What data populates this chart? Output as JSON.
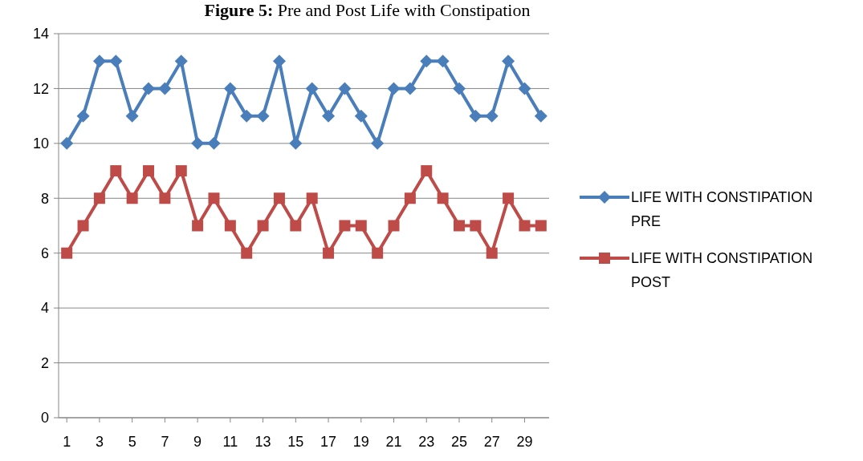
{
  "chart_data": {
    "type": "line",
    "title": "Figure 5: Pre and Post Life with Constipation",
    "x": [
      1,
      2,
      3,
      4,
      5,
      6,
      7,
      8,
      9,
      10,
      11,
      12,
      13,
      14,
      15,
      16,
      17,
      18,
      19,
      20,
      21,
      22,
      23,
      24,
      25,
      26,
      27,
      28,
      29,
      30
    ],
    "xlim": [
      0.5,
      30.5
    ],
    "xticks": [
      1,
      3,
      5,
      7,
      9,
      11,
      13,
      15,
      17,
      19,
      21,
      23,
      25,
      27,
      29
    ],
    "series": [
      {
        "name": "LIFE WITH CONSTIPATION PRE",
        "color": "#4a7ebb",
        "marker": "diamond",
        "values": [
          10,
          11,
          13,
          13,
          11,
          12,
          12,
          13,
          10,
          10,
          12,
          11,
          11,
          13,
          10,
          12,
          11,
          12,
          11,
          10,
          12,
          12,
          13,
          13,
          12,
          11,
          11,
          13,
          12,
          11
        ]
      },
      {
        "name": "LIFE WITH CONSTIPATION POST",
        "color": "#be4b48",
        "marker": "square",
        "values": [
          6,
          7,
          8,
          9,
          8,
          9,
          8,
          9,
          7,
          8,
          7,
          6,
          7,
          8,
          7,
          8,
          6,
          7,
          7,
          6,
          7,
          8,
          9,
          8,
          7,
          7,
          6,
          8,
          7,
          7
        ]
      }
    ],
    "ylim": [
      0,
      14
    ],
    "yticks": [
      0,
      2,
      4,
      6,
      8,
      10,
      12,
      14
    ],
    "grid": "y",
    "legend": "right",
    "line_style": "solid"
  }
}
